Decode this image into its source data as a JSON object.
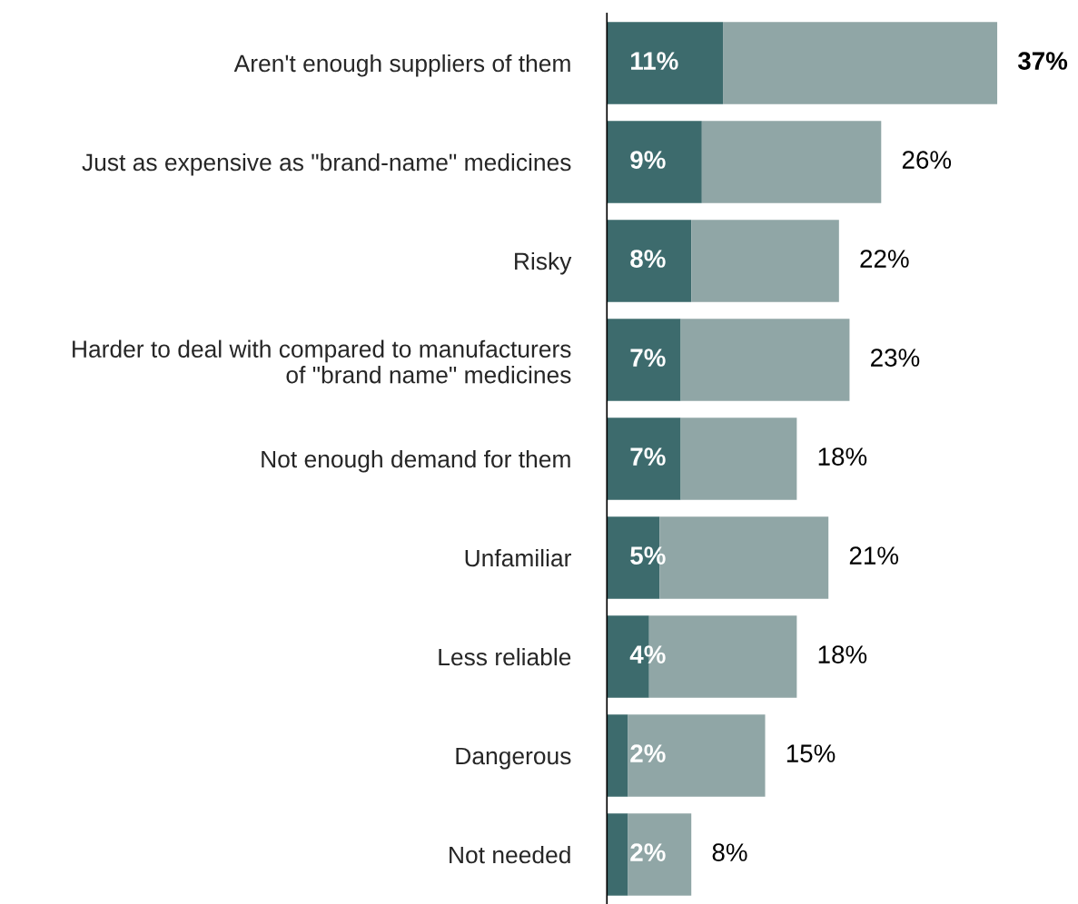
{
  "chart_data": {
    "type": "bar",
    "orientation": "horizontal",
    "stacked": true,
    "categories": [
      "Aren't enough suppliers of them",
      "Just as expensive as \"brand-name\" medicines",
      "Risky",
      "Harder to deal with compared to manufacturers\nof \"brand name\" medicines",
      "Not enough demand for them",
      "Unfamiliar",
      "Less reliable",
      "Dangerous",
      "Not needed"
    ],
    "series": [
      {
        "color": "#3d6b6d",
        "values": [
          11,
          9,
          8,
          7,
          7,
          5,
          4,
          2,
          2
        ],
        "value_labels": [
          "11%",
          "9%",
          "8%",
          "7%",
          "7%",
          "5%",
          "4%",
          "2%",
          "2%"
        ]
      },
      {
        "color": "#90a6a6",
        "values": [
          26,
          17,
          14,
          16,
          11,
          16,
          14,
          13,
          6
        ]
      }
    ],
    "totals": [
      "37%",
      "26%",
      "22%",
      "23%",
      "18%",
      "21%",
      "18%",
      "15%",
      "8%"
    ],
    "legend": false,
    "grid": false
  }
}
